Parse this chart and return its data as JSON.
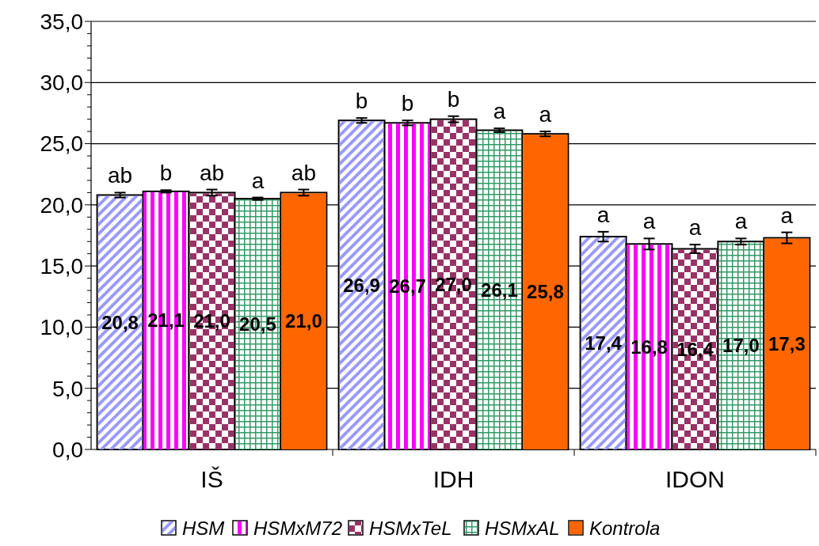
{
  "chart_data": {
    "type": "bar",
    "categories": [
      "IŠ",
      "IDH",
      "IDON"
    ],
    "series": [
      {
        "name": "HSM",
        "color": "#9999ff",
        "values": [
          20.8,
          26.9,
          17.4
        ],
        "value_labels": [
          "20,8",
          "26,9",
          "17,4"
        ],
        "errors": [
          0.2,
          0.2,
          0.4
        ]
      },
      {
        "name": "HSMxM72",
        "color": "#ff00ff",
        "values": [
          21.1,
          26.7,
          16.8
        ],
        "value_labels": [
          "21,1",
          "26,7",
          "16,8"
        ],
        "errors": [
          0.1,
          0.2,
          0.45
        ]
      },
      {
        "name": "HSMxTeL",
        "color": "#993366",
        "values": [
          21.0,
          27.0,
          16.4
        ],
        "value_labels": [
          "21,0",
          "27,0",
          "16,4"
        ],
        "errors": [
          0.25,
          0.25,
          0.35
        ]
      },
      {
        "name": "HSMxAL",
        "color": "#339966",
        "values": [
          20.5,
          26.1,
          17.0
        ],
        "value_labels": [
          "20,5",
          "26,1",
          "17,0"
        ],
        "errors": [
          0.1,
          0.15,
          0.25
        ]
      },
      {
        "name": "Kontrola",
        "color": "#ff6600",
        "values": [
          21.0,
          25.8,
          17.3
        ],
        "value_labels": [
          "21,0",
          "25,8",
          "17,3"
        ],
        "errors": [
          0.25,
          0.2,
          0.45
        ]
      }
    ],
    "ylim": [
      0,
      35
    ],
    "yticks": [
      {
        "value": 0,
        "label": "0,0"
      },
      {
        "value": 1,
        "label": null
      },
      {
        "value": 2,
        "label": null
      },
      {
        "value": 3,
        "label": null
      },
      {
        "value": 4,
        "label": null
      },
      {
        "value": 5,
        "label": "5,0"
      },
      {
        "value": 6,
        "label": null
      },
      {
        "value": 7,
        "label": null
      },
      {
        "value": 8,
        "label": null
      },
      {
        "value": 9,
        "label": null
      },
      {
        "value": 10,
        "label": "10,0"
      },
      {
        "value": 11,
        "label": null
      },
      {
        "value": 12,
        "label": null
      },
      {
        "value": 13,
        "label": null
      },
      {
        "value": 14,
        "label": null
      },
      {
        "value": 15,
        "label": "15,0"
      },
      {
        "value": 16,
        "label": null
      },
      {
        "value": 17,
        "label": null
      },
      {
        "value": 18,
        "label": null
      },
      {
        "value": 19,
        "label": null
      },
      {
        "value": 20,
        "label": "20,0"
      },
      {
        "value": 21,
        "label": null
      },
      {
        "value": 22,
        "label": null
      },
      {
        "value": 23,
        "label": null
      },
      {
        "value": 24,
        "label": null
      },
      {
        "value": 25,
        "label": "25,0"
      },
      {
        "value": 26,
        "label": null
      },
      {
        "value": 27,
        "label": null
      },
      {
        "value": 28,
        "label": null
      },
      {
        "value": 29,
        "label": null
      },
      {
        "value": 30,
        "label": "30,0"
      },
      {
        "value": 31,
        "label": null
      },
      {
        "value": 32,
        "label": null
      },
      {
        "value": 33,
        "label": null
      },
      {
        "value": 34,
        "label": null
      },
      {
        "value": 35,
        "label": "35,0"
      }
    ],
    "grid": "y",
    "legend": "bottom",
    "annotations": [
      "ab",
      "b",
      "ab",
      "a",
      "ab",
      "b",
      "b",
      "b",
      "a",
      "a",
      "a",
      "a",
      "a",
      "a",
      "a"
    ]
  }
}
